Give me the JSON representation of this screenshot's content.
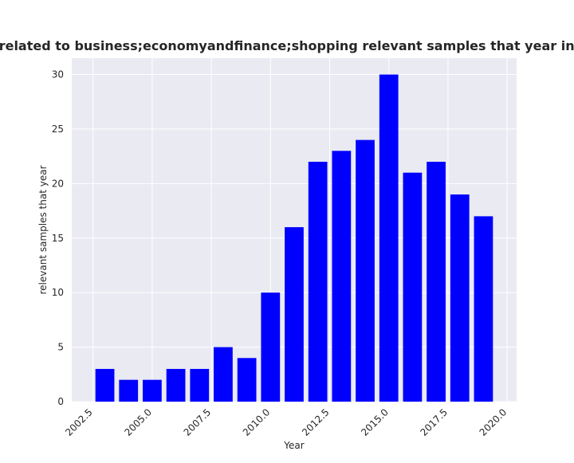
{
  "chart_data": {
    "type": "bar",
    "title": "ntries are related to business;economyandfinance;shopping relevant samples that year in privacy law",
    "xlabel": "Year",
    "ylabel": "relevant samples that year",
    "x": [
      2003,
      2004,
      2005,
      2006,
      2007,
      2008,
      2009,
      2010,
      2011,
      2012,
      2013,
      2014,
      2015,
      2016,
      2017,
      2018,
      2019
    ],
    "values": [
      3,
      2,
      2,
      3,
      3,
      5,
      4,
      10,
      16,
      22,
      23,
      24,
      30,
      21,
      22,
      19,
      17
    ],
    "xlim": [
      2001.6,
      2020.4
    ],
    "ylim": [
      0,
      31.5
    ],
    "xticks": [
      "2002.5",
      "2005.0",
      "2007.5",
      "2010.0",
      "2012.5",
      "2015.0",
      "2017.5",
      "2020.0"
    ],
    "yticks": [
      "0",
      "5",
      "10",
      "15",
      "20",
      "25",
      "30"
    ],
    "grid": true,
    "colors": {
      "bar": "#0000ff",
      "plot_background": "#eaeaf2",
      "grid": "#ffffff"
    }
  }
}
